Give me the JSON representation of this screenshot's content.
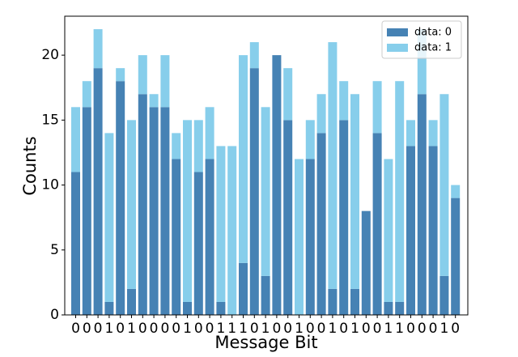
{
  "chart_data": {
    "type": "stacked_bar",
    "x_label": "Message Bit",
    "y_label": "Counts",
    "categories": [
      "0",
      "0",
      "0",
      "1",
      "0",
      "1",
      "0",
      "0",
      "0",
      "0",
      "1",
      "0",
      "0",
      "1",
      "1",
      "1",
      "0",
      "1",
      "0",
      "0",
      "1",
      "0",
      "0",
      "1",
      "0",
      "1",
      "0",
      "0",
      "1",
      "1",
      "0",
      "0",
      "0",
      "1",
      "0"
    ],
    "series": [
      {
        "name": "data: 0",
        "color": "#4682b4",
        "values": [
          11,
          16,
          19,
          1,
          18,
          2,
          17,
          16,
          16,
          12,
          1,
          11,
          12,
          1,
          0,
          4,
          19,
          3,
          20,
          15,
          0,
          12,
          14,
          2,
          15,
          2,
          8,
          14,
          1,
          1,
          13,
          17,
          13,
          3,
          9
        ]
      },
      {
        "name": "data: 1",
        "color": "#87ceeb",
        "values": [
          5,
          2,
          3,
          13,
          1,
          13,
          3,
          1,
          4,
          2,
          14,
          4,
          4,
          12,
          13,
          16,
          2,
          13,
          0,
          4,
          12,
          3,
          3,
          19,
          3,
          15,
          0,
          4,
          11,
          17,
          2,
          5,
          2,
          14,
          1
        ]
      }
    ],
    "ylim": [
      0,
      23
    ],
    "yticks": [
      0,
      5,
      10,
      15,
      20
    ],
    "legend": "upper right"
  }
}
